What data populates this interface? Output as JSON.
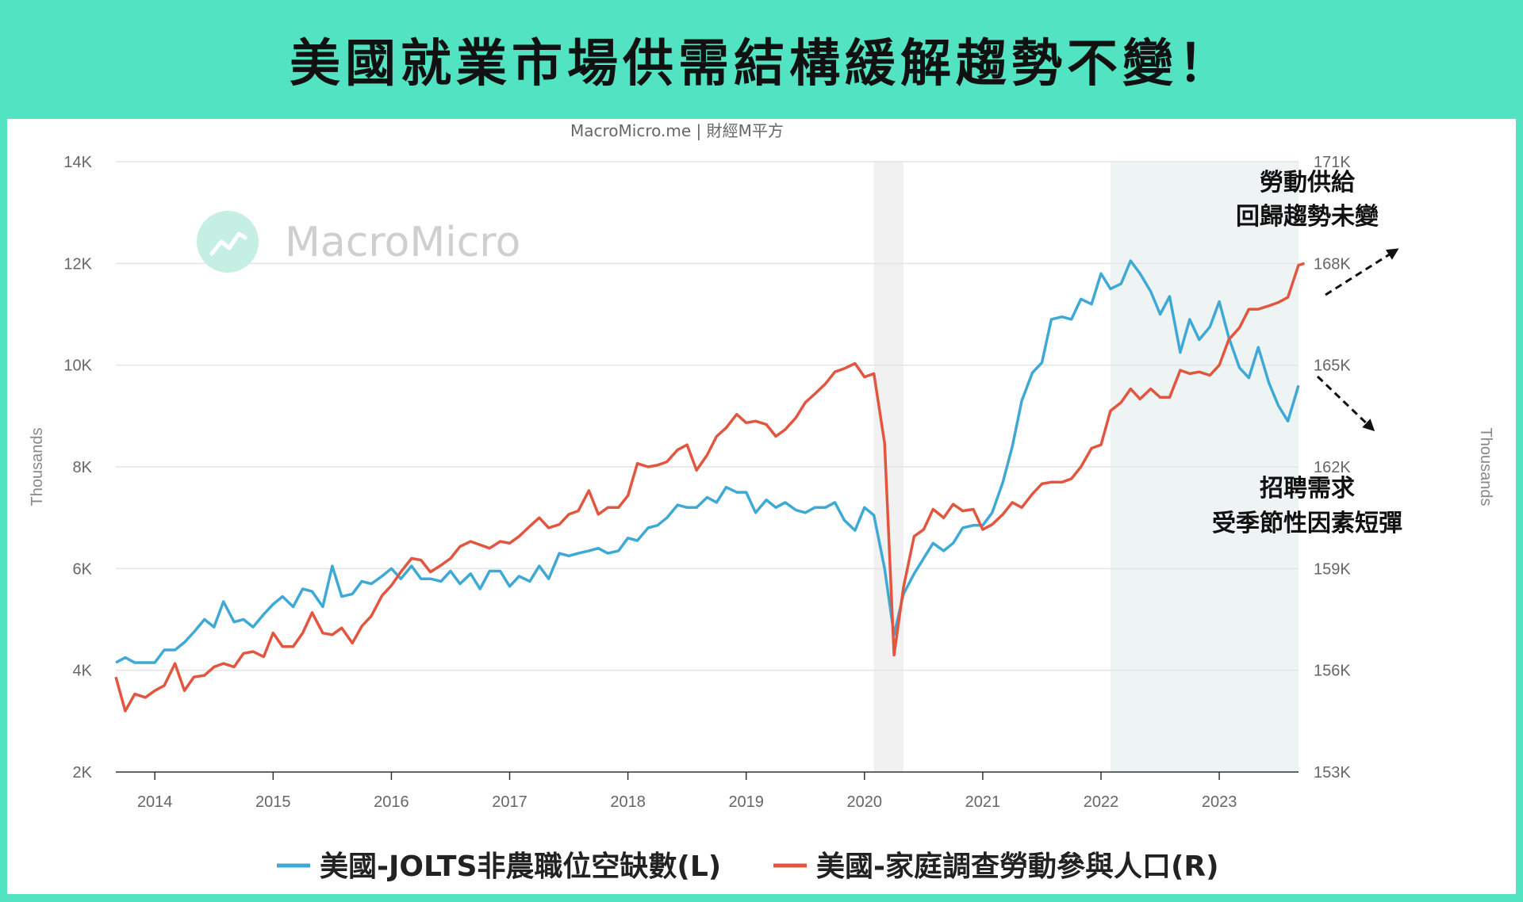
{
  "headline": "美國就業市場供需結構緩解趨勢不變！",
  "source": "MacroMicro.me | 財經M平方",
  "watermark": "MacroMicro",
  "colors": {
    "jolts": "#3fa9d6",
    "labor": "#e2553f",
    "recession": "#f1f1f1",
    "highlight": "#eef4f4"
  },
  "chart_data": {
    "type": "line",
    "y_left": {
      "label": "Thousands",
      "lim": [
        2000,
        14000
      ],
      "ticks": [
        2000,
        4000,
        6000,
        8000,
        10000,
        12000,
        14000
      ],
      "tick_labels": [
        "2K",
        "4K",
        "6K",
        "8K",
        "10K",
        "12K",
        "14K"
      ]
    },
    "y_right": {
      "label": "Thousands",
      "lim": [
        153000,
        171000
      ],
      "ticks": [
        153000,
        156000,
        159000,
        162000,
        165000,
        168000,
        171000
      ],
      "tick_labels": [
        "153K",
        "156K",
        "159K",
        "162K",
        "165K",
        "168K",
        "171K"
      ]
    },
    "x_range": [
      2013.67,
      2023.67
    ],
    "x_ticks": [
      2014,
      2015,
      2016,
      2017,
      2018,
      2019,
      2020,
      2021,
      2022,
      2023
    ],
    "x_tick_labels": [
      "2014",
      "2015",
      "2016",
      "2017",
      "2018",
      "2019",
      "2020",
      "2021",
      "2022",
      "2023"
    ],
    "shaded": {
      "recession": [
        2020.08,
        2020.33
      ],
      "highlight": [
        2022.08,
        2023.67
      ]
    },
    "grid": true,
    "series": [
      {
        "name": "美國-JOLTS非農職位空缺數(L)",
        "axis": "left",
        "points": [
          [
            2013.67,
            4150
          ],
          [
            2013.75,
            4250
          ],
          [
            2013.83,
            4150
          ],
          [
            2013.92,
            4150
          ],
          [
            2014.0,
            4150
          ],
          [
            2014.08,
            4400
          ],
          [
            2014.17,
            4400
          ],
          [
            2014.25,
            4550
          ],
          [
            2014.33,
            4750
          ],
          [
            2014.42,
            5000
          ],
          [
            2014.5,
            4850
          ],
          [
            2014.58,
            5350
          ],
          [
            2014.67,
            4950
          ],
          [
            2014.75,
            5000
          ],
          [
            2014.83,
            4850
          ],
          [
            2014.92,
            5100
          ],
          [
            2015.0,
            5300
          ],
          [
            2015.08,
            5450
          ],
          [
            2015.17,
            5250
          ],
          [
            2015.25,
            5600
          ],
          [
            2015.33,
            5550
          ],
          [
            2015.42,
            5250
          ],
          [
            2015.5,
            6050
          ],
          [
            2015.58,
            5450
          ],
          [
            2015.67,
            5500
          ],
          [
            2015.75,
            5750
          ],
          [
            2015.83,
            5700
          ],
          [
            2015.92,
            5850
          ],
          [
            2016.0,
            6000
          ],
          [
            2016.08,
            5800
          ],
          [
            2016.17,
            6050
          ],
          [
            2016.25,
            5800
          ],
          [
            2016.33,
            5800
          ],
          [
            2016.42,
            5750
          ],
          [
            2016.5,
            5950
          ],
          [
            2016.58,
            5700
          ],
          [
            2016.67,
            5900
          ],
          [
            2016.75,
            5600
          ],
          [
            2016.83,
            5950
          ],
          [
            2016.92,
            5950
          ],
          [
            2017.0,
            5650
          ],
          [
            2017.08,
            5850
          ],
          [
            2017.17,
            5750
          ],
          [
            2017.25,
            6050
          ],
          [
            2017.33,
            5800
          ],
          [
            2017.42,
            6300
          ],
          [
            2017.5,
            6250
          ],
          [
            2017.58,
            6300
          ],
          [
            2017.67,
            6350
          ],
          [
            2017.75,
            6400
          ],
          [
            2017.83,
            6300
          ],
          [
            2017.92,
            6350
          ],
          [
            2018.0,
            6600
          ],
          [
            2018.08,
            6550
          ],
          [
            2018.17,
            6800
          ],
          [
            2018.25,
            6850
          ],
          [
            2018.33,
            7000
          ],
          [
            2018.42,
            7250
          ],
          [
            2018.5,
            7200
          ],
          [
            2018.58,
            7200
          ],
          [
            2018.67,
            7400
          ],
          [
            2018.75,
            7300
          ],
          [
            2018.83,
            7600
          ],
          [
            2018.92,
            7500
          ],
          [
            2019.0,
            7500
          ],
          [
            2019.08,
            7100
          ],
          [
            2019.17,
            7350
          ],
          [
            2019.25,
            7200
          ],
          [
            2019.33,
            7300
          ],
          [
            2019.42,
            7150
          ],
          [
            2019.5,
            7100
          ],
          [
            2019.58,
            7200
          ],
          [
            2019.67,
            7200
          ],
          [
            2019.75,
            7300
          ],
          [
            2019.83,
            6950
          ],
          [
            2019.92,
            6750
          ],
          [
            2020.0,
            7200
          ],
          [
            2020.08,
            7050
          ],
          [
            2020.17,
            6000
          ],
          [
            2020.25,
            4700
          ],
          [
            2020.33,
            5500
          ],
          [
            2020.42,
            5900
          ],
          [
            2020.5,
            6200
          ],
          [
            2020.58,
            6500
          ],
          [
            2020.67,
            6350
          ],
          [
            2020.75,
            6500
          ],
          [
            2020.83,
            6800
          ],
          [
            2020.92,
            6850
          ],
          [
            2021.0,
            6850
          ],
          [
            2021.08,
            7100
          ],
          [
            2021.17,
            7700
          ],
          [
            2021.25,
            8400
          ],
          [
            2021.33,
            9300
          ],
          [
            2021.42,
            9850
          ],
          [
            2021.5,
            10050
          ],
          [
            2021.58,
            10900
          ],
          [
            2021.67,
            10950
          ],
          [
            2021.75,
            10900
          ],
          [
            2021.83,
            11300
          ],
          [
            2021.92,
            11200
          ],
          [
            2022.0,
            11800
          ],
          [
            2022.08,
            11500
          ],
          [
            2022.17,
            11600
          ],
          [
            2022.25,
            12050
          ],
          [
            2022.33,
            11800
          ],
          [
            2022.42,
            11450
          ],
          [
            2022.5,
            11000
          ],
          [
            2022.58,
            11350
          ],
          [
            2022.67,
            10250
          ],
          [
            2022.75,
            10900
          ],
          [
            2022.83,
            10500
          ],
          [
            2022.92,
            10750
          ],
          [
            2023.0,
            11250
          ],
          [
            2023.08,
            10550
          ],
          [
            2023.17,
            9950
          ],
          [
            2023.25,
            9750
          ],
          [
            2023.33,
            10350
          ],
          [
            2023.42,
            9650
          ],
          [
            2023.5,
            9200
          ],
          [
            2023.58,
            8900
          ],
          [
            2023.67,
            9600
          ]
        ]
      },
      {
        "name": "美國-家庭調查勞動參與人口(R)",
        "axis": "right",
        "points": [
          [
            2013.67,
            155800
          ],
          [
            2013.75,
            154800
          ],
          [
            2013.83,
            155300
          ],
          [
            2013.92,
            155200
          ],
          [
            2014.0,
            155400
          ],
          [
            2014.08,
            155550
          ],
          [
            2014.17,
            156200
          ],
          [
            2014.25,
            155400
          ],
          [
            2014.33,
            155800
          ],
          [
            2014.42,
            155850
          ],
          [
            2014.5,
            156100
          ],
          [
            2014.58,
            156200
          ],
          [
            2014.67,
            156100
          ],
          [
            2014.75,
            156500
          ],
          [
            2014.83,
            156550
          ],
          [
            2014.92,
            156400
          ],
          [
            2015.0,
            157100
          ],
          [
            2015.08,
            156700
          ],
          [
            2015.17,
            156700
          ],
          [
            2015.25,
            157100
          ],
          [
            2015.33,
            157700
          ],
          [
            2015.42,
            157100
          ],
          [
            2015.5,
            157050
          ],
          [
            2015.58,
            157250
          ],
          [
            2015.67,
            156800
          ],
          [
            2015.75,
            157300
          ],
          [
            2015.83,
            157600
          ],
          [
            2015.92,
            158200
          ],
          [
            2016.0,
            158500
          ],
          [
            2016.08,
            158900
          ],
          [
            2016.17,
            159300
          ],
          [
            2016.25,
            159250
          ],
          [
            2016.33,
            158900
          ],
          [
            2016.42,
            159100
          ],
          [
            2016.5,
            159300
          ],
          [
            2016.58,
            159650
          ],
          [
            2016.67,
            159800
          ],
          [
            2016.75,
            159700
          ],
          [
            2016.83,
            159600
          ],
          [
            2016.92,
            159800
          ],
          [
            2017.0,
            159750
          ],
          [
            2017.08,
            159950
          ],
          [
            2017.17,
            160250
          ],
          [
            2017.25,
            160500
          ],
          [
            2017.33,
            160200
          ],
          [
            2017.42,
            160300
          ],
          [
            2017.5,
            160600
          ],
          [
            2017.58,
            160700
          ],
          [
            2017.67,
            161300
          ],
          [
            2017.75,
            160600
          ],
          [
            2017.83,
            160800
          ],
          [
            2017.92,
            160800
          ],
          [
            2018.0,
            161150
          ],
          [
            2018.08,
            162100
          ],
          [
            2018.17,
            162000
          ],
          [
            2018.25,
            162050
          ],
          [
            2018.33,
            162150
          ],
          [
            2018.42,
            162500
          ],
          [
            2018.5,
            162650
          ],
          [
            2018.58,
            161900
          ],
          [
            2018.67,
            162350
          ],
          [
            2018.75,
            162900
          ],
          [
            2018.83,
            163150
          ],
          [
            2018.92,
            163550
          ],
          [
            2019.0,
            163300
          ],
          [
            2019.08,
            163350
          ],
          [
            2019.17,
            163250
          ],
          [
            2019.25,
            162900
          ],
          [
            2019.33,
            163100
          ],
          [
            2019.42,
            163450
          ],
          [
            2019.5,
            163900
          ],
          [
            2019.58,
            164150
          ],
          [
            2019.67,
            164450
          ],
          [
            2019.75,
            164800
          ],
          [
            2019.83,
            164900
          ],
          [
            2019.92,
            165050
          ],
          [
            2020.0,
            164650
          ],
          [
            2020.08,
            164750
          ],
          [
            2020.17,
            162700
          ],
          [
            2020.25,
            156450
          ],
          [
            2020.33,
            158450
          ],
          [
            2020.42,
            159950
          ],
          [
            2020.5,
            160150
          ],
          [
            2020.58,
            160750
          ],
          [
            2020.67,
            160500
          ],
          [
            2020.75,
            160900
          ],
          [
            2020.83,
            160700
          ],
          [
            2020.92,
            160750
          ],
          [
            2021.0,
            160150
          ],
          [
            2021.08,
            160300
          ],
          [
            2021.17,
            160600
          ],
          [
            2021.25,
            160950
          ],
          [
            2021.33,
            160800
          ],
          [
            2021.42,
            161200
          ],
          [
            2021.5,
            161500
          ],
          [
            2021.58,
            161550
          ],
          [
            2021.67,
            161550
          ],
          [
            2021.75,
            161650
          ],
          [
            2021.83,
            162000
          ],
          [
            2021.92,
            162550
          ],
          [
            2022.0,
            162650
          ],
          [
            2022.08,
            163650
          ],
          [
            2022.17,
            163900
          ],
          [
            2022.25,
            164300
          ],
          [
            2022.33,
            164000
          ],
          [
            2022.42,
            164300
          ],
          [
            2022.5,
            164050
          ],
          [
            2022.58,
            164050
          ],
          [
            2022.67,
            164850
          ],
          [
            2022.75,
            164750
          ],
          [
            2022.83,
            164800
          ],
          [
            2022.92,
            164700
          ],
          [
            2023.0,
            165000
          ],
          [
            2023.08,
            165750
          ],
          [
            2023.17,
            166100
          ],
          [
            2023.25,
            166650
          ],
          [
            2023.33,
            166650
          ],
          [
            2023.42,
            166750
          ],
          [
            2023.5,
            166850
          ],
          [
            2023.58,
            167000
          ],
          [
            2023.67,
            167950
          ],
          [
            2023.72,
            168000
          ]
        ]
      }
    ],
    "annotations": [
      {
        "text_lines": [
          "勞動供給",
          "回歸趨勢未變"
        ],
        "arrow": "up-right"
      },
      {
        "text_lines": [
          "招聘需求",
          "受季節性因素短彈"
        ],
        "arrow": "down-right"
      }
    ]
  }
}
